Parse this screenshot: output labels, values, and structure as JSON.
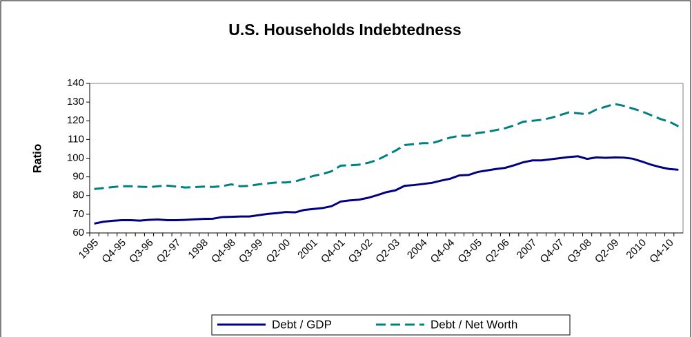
{
  "chart_data": {
    "type": "line",
    "title": "U.S. Households Indebtedness",
    "y_label": "Ratio",
    "categories": [
      "1995",
      null,
      null,
      "Q4-95",
      null,
      null,
      "Q3-96",
      null,
      null,
      "Q2-97",
      null,
      null,
      "1998",
      null,
      null,
      "Q4-98",
      null,
      null,
      "Q3-99",
      null,
      null,
      "Q2-00",
      null,
      null,
      "2001",
      null,
      null,
      "Q4-01",
      null,
      null,
      "Q3-02",
      null,
      null,
      "Q2-03",
      null,
      null,
      "2004",
      null,
      null,
      "Q4-04",
      null,
      null,
      "Q3-05",
      null,
      null,
      "Q2-06",
      null,
      null,
      "2007",
      null,
      null,
      "Q4-07",
      null,
      null,
      "Q3-08",
      null,
      null,
      "Q2-09",
      null,
      null,
      "2010",
      null,
      null,
      "Q4-10",
      null
    ],
    "series": [
      {
        "name": "Debt / GDP",
        "color": "#000080",
        "values": [
          65,
          66,
          66.5,
          66.8,
          66.8,
          66.6,
          67,
          67.2,
          66.8,
          66.8,
          67,
          67.3,
          67.5,
          67.6,
          68.5,
          68.6,
          68.8,
          68.8,
          69.5,
          70.2,
          70.6,
          71.2,
          71,
          72.3,
          72.8,
          73.3,
          74.3,
          76.8,
          77.4,
          77.8,
          78.8,
          80.2,
          81.8,
          82.8,
          85.2,
          85.6,
          86.2,
          86.8,
          88,
          89,
          90.8,
          91,
          92.6,
          93.4,
          94.2,
          94.8,
          96.2,
          97.8,
          98.8,
          98.8,
          99.4,
          100,
          100.6,
          101,
          99.6,
          100.4,
          100.2,
          100.4,
          100.3,
          99.7,
          98.2,
          96.5,
          95.2,
          94.2,
          93.8
        ]
      },
      {
        "name": "Debt / Net Worth",
        "color": "#008080",
        "dashed": true,
        "values": [
          83.5,
          84,
          84.5,
          85,
          85,
          84.7,
          84.5,
          85,
          85.3,
          84.8,
          84.3,
          84.5,
          84.8,
          84.6,
          85,
          86,
          85,
          85.2,
          86,
          86.5,
          87,
          87,
          87.5,
          89,
          90.5,
          91.5,
          93,
          96,
          96.2,
          96.5,
          97.5,
          99,
          101.5,
          104,
          107,
          107.5,
          108,
          108,
          109.5,
          111,
          112,
          112,
          113.5,
          114,
          115,
          116,
          117.5,
          119.5,
          120,
          120.5,
          121.5,
          123,
          124.5,
          124,
          123.5,
          126,
          127.5,
          129,
          128,
          126.5,
          125,
          123,
          121,
          119.5,
          117
        ]
      }
    ],
    "ylim": [
      60,
      140
    ],
    "yticks": [
      60,
      70,
      80,
      90,
      100,
      110,
      120,
      130,
      140
    ],
    "legend": "bottom"
  }
}
